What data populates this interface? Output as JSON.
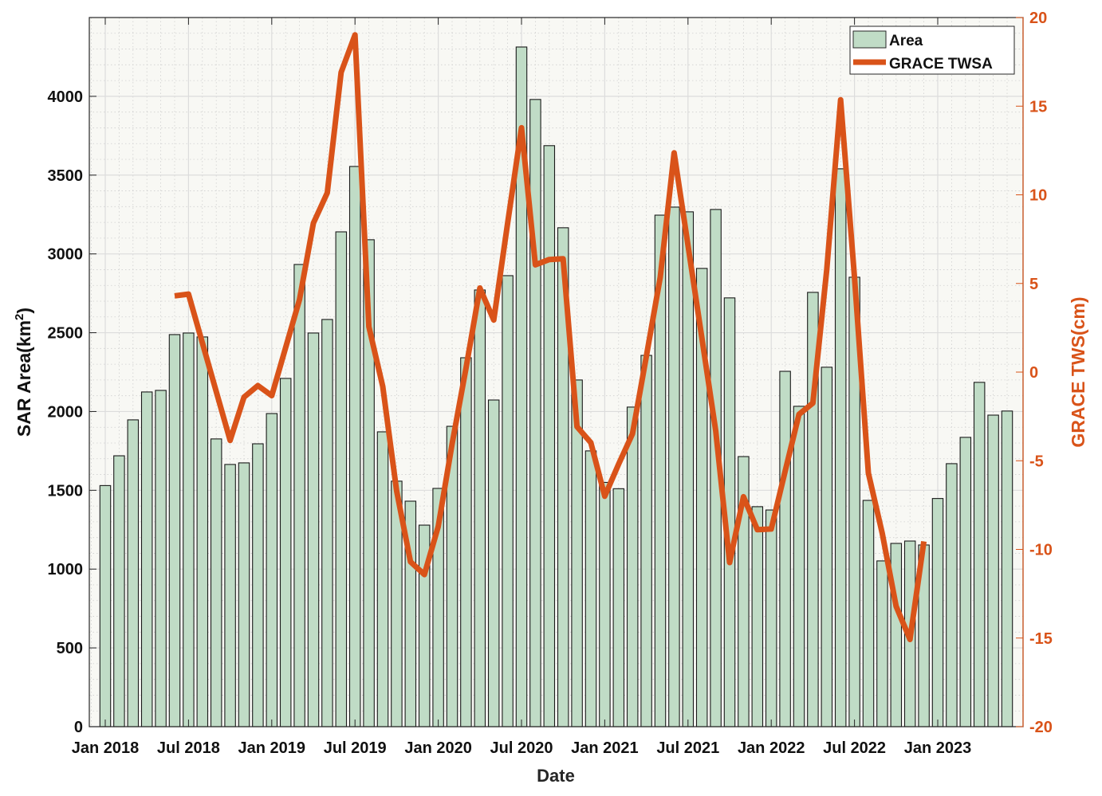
{
  "chart_data": {
    "type": "bar+line",
    "title": "",
    "xlabel": "Date",
    "ylabel_left": "SAR Area(km",
    "ylabel_left_sup": "2",
    "ylabel_left_close": ")",
    "ylabel_right": "GRACE TWS(cm)",
    "ylim_left": [
      0,
      4500
    ],
    "ylim_right": [
      -20,
      20
    ],
    "yticks_left": [
      0,
      500,
      1000,
      1500,
      2000,
      2500,
      3000,
      3500,
      4000
    ],
    "yticks_right": [
      -20,
      -15,
      -10,
      -5,
      0,
      5,
      10,
      15,
      20
    ],
    "xtick_labels": [
      "Jan 2018",
      "Jul 2018",
      "Jan 2019",
      "Jul 2019",
      "Jan 2020",
      "Jul 2020",
      "Jan 2021",
      "Jul 2021",
      "Jan 2022",
      "Jul 2022",
      "Jan 2023"
    ],
    "grid": true,
    "legend_position": "top-right",
    "categories": [
      "Jan 2018",
      "Feb 2018",
      "Mar 2018",
      "Apr 2018",
      "May 2018",
      "Jun 2018",
      "Jul 2018",
      "Aug 2018",
      "Sep 2018",
      "Oct 2018",
      "Nov 2018",
      "Dec 2018",
      "Jan 2019",
      "Feb 2019",
      "Mar 2019",
      "Apr 2019",
      "May 2019",
      "Jun 2019",
      "Jul 2019",
      "Aug 2019",
      "Sep 2019",
      "Oct 2019",
      "Nov 2019",
      "Dec 2019",
      "Jan 2020",
      "Feb 2020",
      "Mar 2020",
      "Apr 2020",
      "May 2020",
      "Jun 2020",
      "Jul 2020",
      "Aug 2020",
      "Sep 2020",
      "Oct 2020",
      "Nov 2020",
      "Dec 2020",
      "Jan 2021",
      "Feb 2021",
      "Mar 2021",
      "Apr 2021",
      "May 2021",
      "Jun 2021",
      "Jul 2021",
      "Aug 2021",
      "Sep 2021",
      "Oct 2021",
      "Nov 2021",
      "Dec 2021",
      "Jan 2022",
      "Feb 2022",
      "Mar 2022",
      "Apr 2022",
      "May 2022",
      "Jun 2022",
      "Jul 2022",
      "Aug 2022",
      "Sep 2022",
      "Oct 2022",
      "Nov 2022",
      "Dec 2022",
      "Jan 2023",
      "Feb 2023",
      "Mar 2023",
      "Apr 2023",
      "May 2023",
      "Jun 2023"
    ],
    "series": [
      {
        "name": "Area",
        "type": "bar",
        "axis": "left",
        "color": "#c0dcc6",
        "values": [
          1530,
          1719,
          1947,
          2124,
          2134,
          2488,
          2498,
          2473,
          1826,
          1664,
          1674,
          1795,
          1987,
          2210,
          2933,
          2498,
          2584,
          3140,
          3555,
          3090,
          1871,
          1558,
          1431,
          1279,
          1512,
          1906,
          2341,
          2771,
          2073,
          2862,
          4313,
          3980,
          3687,
          3166,
          2200,
          1750,
          1550,
          1510,
          2028,
          2356,
          3246,
          3297,
          3267,
          2908,
          3282,
          2721,
          1714,
          1396,
          1375,
          2255,
          2033,
          2756,
          2281,
          3540,
          2852,
          1436,
          1052,
          1163,
          1178,
          1153,
          1448,
          1669,
          1836,
          2185,
          1977,
          2003
        ]
      },
      {
        "name": "GRACE TWSA",
        "type": "line",
        "axis": "right",
        "color": "#d95319",
        "values": [
          null,
          null,
          null,
          null,
          null,
          4.3,
          4.4,
          null,
          null,
          -3.85,
          -1.41,
          -0.76,
          -1.33,
          null,
          4.09,
          8.4,
          10.11,
          16.91,
          19.02,
          2.56,
          -0.81,
          -6.7,
          -10.7,
          -11.42,
          -8.7,
          -4.04,
          0.22,
          4.74,
          2.94,
          8.4,
          13.78,
          6.05,
          6.35,
          6.39,
          -3.08,
          -3.98,
          -7.0,
          -5.19,
          -3.48,
          0.9,
          5.35,
          12.37,
          7.15,
          1.93,
          -3.32,
          -10.74,
          -7.03,
          -8.89,
          -8.85,
          -5.6,
          -2.38,
          -1.75,
          5.77,
          15.36,
          5.35,
          -5.69,
          -9.09,
          -13.21,
          -15.08,
          -9.55,
          null,
          null,
          null,
          null,
          null,
          null
        ]
      }
    ]
  }
}
